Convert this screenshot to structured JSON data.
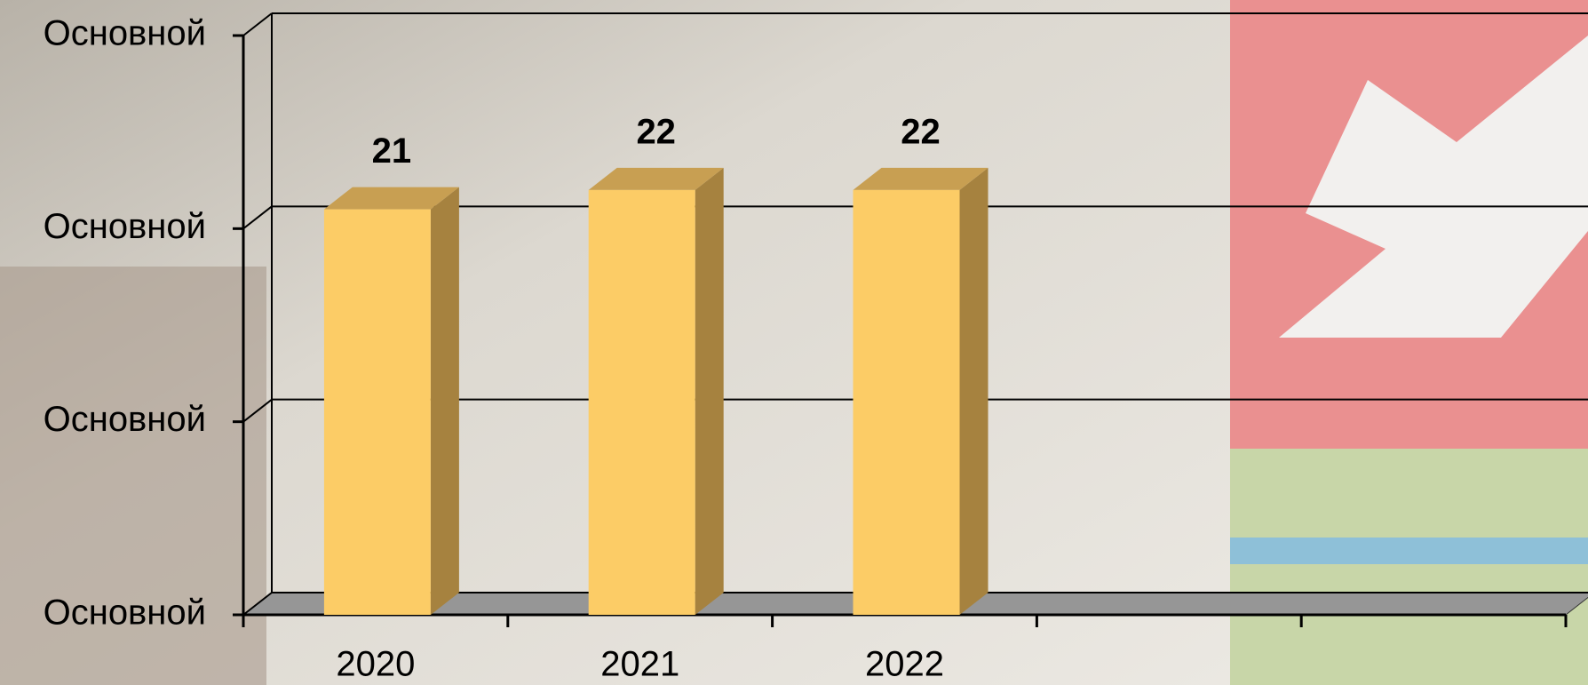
{
  "chart_data": {
    "type": "bar3d",
    "categories": [
      "2020",
      "2021",
      "2022",
      null,
      null
    ],
    "values": [
      21,
      22,
      22,
      null,
      null
    ],
    "color": "#fccc66",
    "side_color": "#a6823f",
    "top_color": "#c89f52",
    "ylim": [
      0,
      30
    ],
    "yticks": [
      {
        "value": 0,
        "label": "Основной"
      },
      {
        "value": 10,
        "label": "Основной"
      },
      {
        "value": 20,
        "label": "Основной"
      },
      {
        "value": 30,
        "label": "Основной"
      }
    ],
    "grid": true
  }
}
